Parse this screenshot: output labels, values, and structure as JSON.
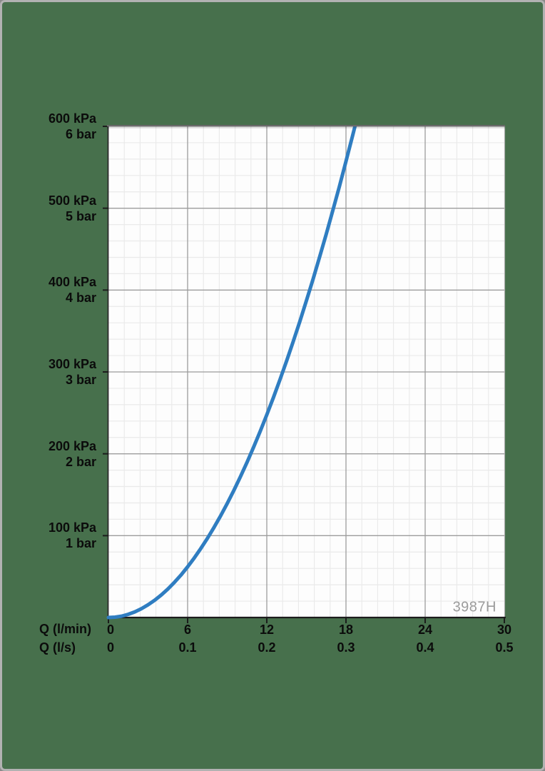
{
  "watermark": "3987H",
  "colors": {
    "frame_background": "#47704c",
    "frame_border": "#b2b2b2",
    "plot_background": "#fdfdfd",
    "grid_major": "#9c9c9c",
    "grid_minor": "#eaeaea",
    "axis": "#1c1c1c",
    "panel_top_border": "#6a6a6a",
    "panel_right_border": "#ababab",
    "curve": "#2f7dc1",
    "label_text": "#0b0b0b",
    "watermark_text": "#9b9b9b"
  },
  "chart_data": {
    "type": "line",
    "description": "Pressure drop versus flow rate curve",
    "x_axis": {
      "rows": [
        {
          "label": "Q (l/min)",
          "ticks": [
            "0",
            "6",
            "12",
            "18",
            "24",
            "30"
          ],
          "tick_values_lmin": [
            0,
            6,
            12,
            18,
            24,
            30
          ]
        },
        {
          "label": "Q (l/s)",
          "ticks": [
            "0",
            "0.1",
            "0.2",
            "0.3",
            "0.4",
            "0.5"
          ],
          "tick_values_lmin": [
            0,
            6,
            12,
            18,
            24,
            30
          ]
        }
      ],
      "range_lmin": [
        0,
        30
      ],
      "major_step_lmin": 6,
      "minor_step_lmin": 1.2
    },
    "y_axis": {
      "range_kpa": [
        0,
        600
      ],
      "major_step_kpa": 100,
      "minor_step_kpa": 20,
      "ticks": [
        {
          "kpa": 600,
          "kpa_label": "600 kPa",
          "bar_label": "6 bar"
        },
        {
          "kpa": 500,
          "kpa_label": "500 kPa",
          "bar_label": "5 bar"
        },
        {
          "kpa": 400,
          "kpa_label": "400 kPa",
          "bar_label": "4 bar"
        },
        {
          "kpa": 300,
          "kpa_label": "300 kPa",
          "bar_label": "3 bar"
        },
        {
          "kpa": 200,
          "kpa_label": "200 kPa",
          "bar_label": "2 bar"
        },
        {
          "kpa": 100,
          "kpa_label": "100 kPa",
          "bar_label": "1 bar"
        }
      ]
    },
    "grid": true,
    "legend": false,
    "series": [
      {
        "name": "pressure-drop-curve",
        "color": "#2f7dc1",
        "points_lmin_kpa": [
          [
            0,
            0
          ],
          [
            0.5,
            0.4
          ],
          [
            1,
            1.7
          ],
          [
            1.5,
            3.9
          ],
          [
            2,
            6.9
          ],
          [
            2.5,
            10.8
          ],
          [
            3,
            15.5
          ],
          [
            3.5,
            21.1
          ],
          [
            4,
            27.5
          ],
          [
            4.5,
            34.8
          ],
          [
            5,
            43.0
          ],
          [
            5.5,
            52.0
          ],
          [
            6,
            61.9
          ],
          [
            6.5,
            72.7
          ],
          [
            7,
            84.3
          ],
          [
            7.5,
            96.8
          ],
          [
            8,
            110.1
          ],
          [
            8.5,
            124.3
          ],
          [
            9,
            139.3
          ],
          [
            9.5,
            155.2
          ],
          [
            10,
            172.0
          ],
          [
            10.5,
            189.6
          ],
          [
            11,
            208.1
          ],
          [
            11.5,
            227.5
          ],
          [
            12,
            247.7
          ],
          [
            12.5,
            268.8
          ],
          [
            13,
            290.7
          ],
          [
            13.5,
            313.5
          ],
          [
            14,
            337.1
          ],
          [
            14.5,
            361.6
          ],
          [
            15,
            387.0
          ],
          [
            15.5,
            413.2
          ],
          [
            16,
            440.3
          ],
          [
            16.5,
            468.2
          ],
          [
            17,
            497.1
          ],
          [
            17.5,
            526.7
          ],
          [
            18,
            557.3
          ],
          [
            18.5,
            588.7
          ],
          [
            18.68,
            600
          ]
        ]
      }
    ]
  }
}
